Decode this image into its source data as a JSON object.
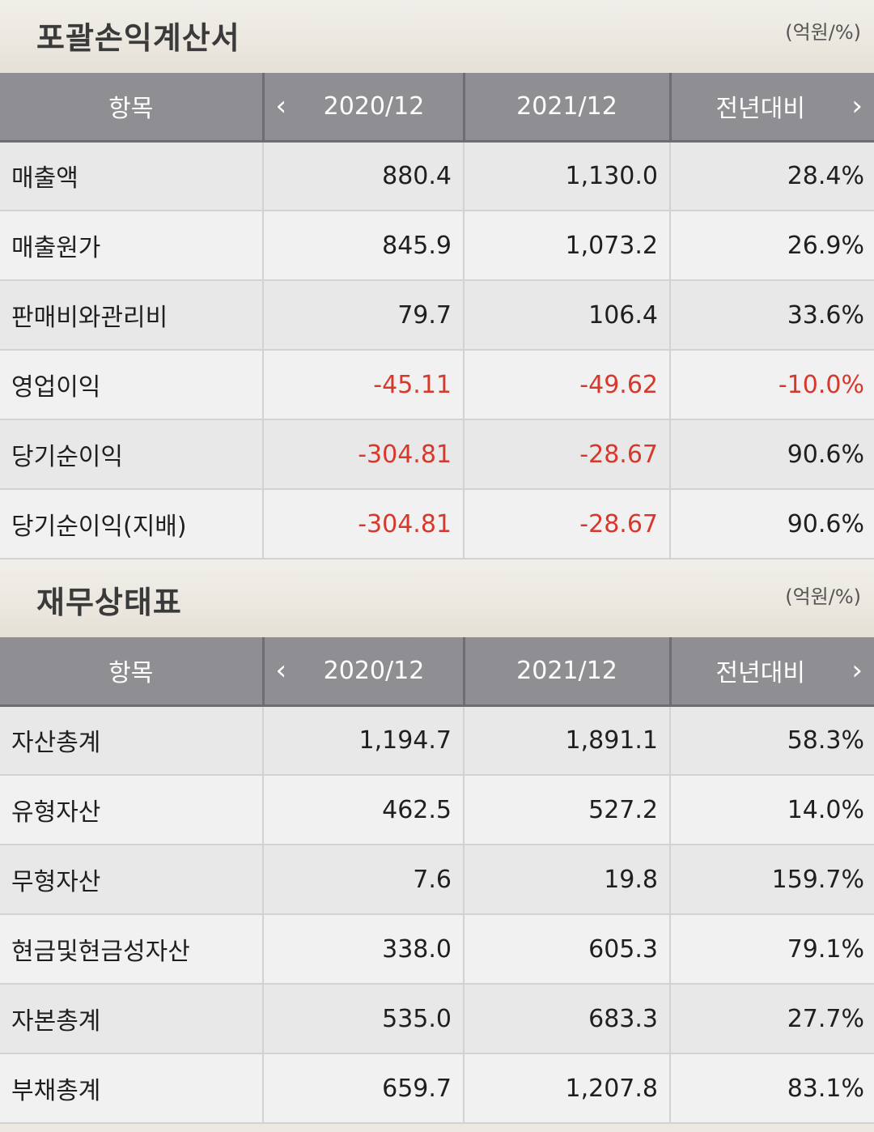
{
  "income": {
    "title": "포괄손익계산서",
    "unit": "(억원/%)",
    "headers": {
      "item": "항목",
      "y1": "2020/12",
      "y2": "2021/12",
      "yoy": "전년대비"
    },
    "rows": [
      {
        "label": "매출액",
        "y1": "880.4",
        "y2": "1,130.0",
        "yoy": "28.4%"
      },
      {
        "label": "매출원가",
        "y1": "845.9",
        "y2": "1,073.2",
        "yoy": "26.9%"
      },
      {
        "label": "판매비와관리비",
        "y1": "79.7",
        "y2": "106.4",
        "yoy": "33.6%"
      },
      {
        "label": "영업이익",
        "y1": "-45.11",
        "y2": "-49.62",
        "yoy": "-10.0%"
      },
      {
        "label": "당기순이익",
        "y1": "-304.81",
        "y2": "-28.67",
        "yoy": "90.6%"
      },
      {
        "label": "당기순이익(지배)",
        "y1": "-304.81",
        "y2": "-28.67",
        "yoy": "90.6%"
      }
    ]
  },
  "balance": {
    "title": "재무상태표",
    "unit": "(억원/%)",
    "headers": {
      "item": "항목",
      "y1": "2020/12",
      "y2": "2021/12",
      "yoy": "전년대비"
    },
    "rows": [
      {
        "label": "자산총계",
        "y1": "1,194.7",
        "y2": "1,891.1",
        "yoy": "58.3%"
      },
      {
        "label": "유형자산",
        "y1": "462.5",
        "y2": "527.2",
        "yoy": "14.0%"
      },
      {
        "label": "무형자산",
        "y1": "7.6",
        "y2": "19.8",
        "yoy": "159.7%"
      },
      {
        "label": "현금및현금성자산",
        "y1": "338.0",
        "y2": "605.3",
        "yoy": "79.1%"
      },
      {
        "label": "자본총계",
        "y1": "535.0",
        "y2": "683.3",
        "yoy": "27.7%"
      },
      {
        "label": "부채총계",
        "y1": "659.7",
        "y2": "1,207.8",
        "yoy": "83.1%"
      }
    ]
  },
  "icons": {
    "prev": "chevron-left-icon",
    "next": "chevron-right-icon"
  },
  "colors": {
    "header_bg": "#8f8f93",
    "negative": "#d8372c",
    "row_odd": "#e8e8e8",
    "row_even": "#f1f1f1"
  }
}
